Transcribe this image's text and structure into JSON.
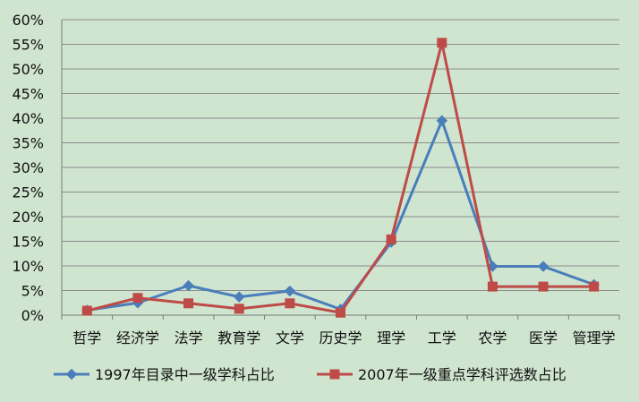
{
  "chart_data": {
    "type": "line",
    "categories": [
      "哲学",
      "经济学",
      "法学",
      "教育学",
      "文学",
      "历史学",
      "理学",
      "工学",
      "农学",
      "医学",
      "管理学"
    ],
    "y_tick_labels": [
      "0%",
      "5%",
      "10%",
      "15%",
      "20%",
      "25%",
      "30%",
      "35%",
      "40%",
      "45%",
      "50%",
      "55%",
      "60%"
    ],
    "ylim": [
      0,
      60
    ],
    "grid": true,
    "legend_position": "bottom",
    "series": [
      {
        "name": "1997年目录中一级学科占比",
        "color": "#4a7ebb",
        "marker": "diamond",
        "values": [
          1.0,
          2.5,
          6.0,
          3.7,
          4.9,
          1.2,
          14.8,
          39.5,
          9.9,
          9.9,
          6.2
        ]
      },
      {
        "name": "2007年一级重点学科评选数占比",
        "color": "#be4b48",
        "marker": "square",
        "values": [
          0.9,
          3.5,
          2.4,
          1.3,
          2.4,
          0.5,
          15.4,
          55.3,
          5.8,
          5.8,
          5.8
        ]
      }
    ]
  }
}
